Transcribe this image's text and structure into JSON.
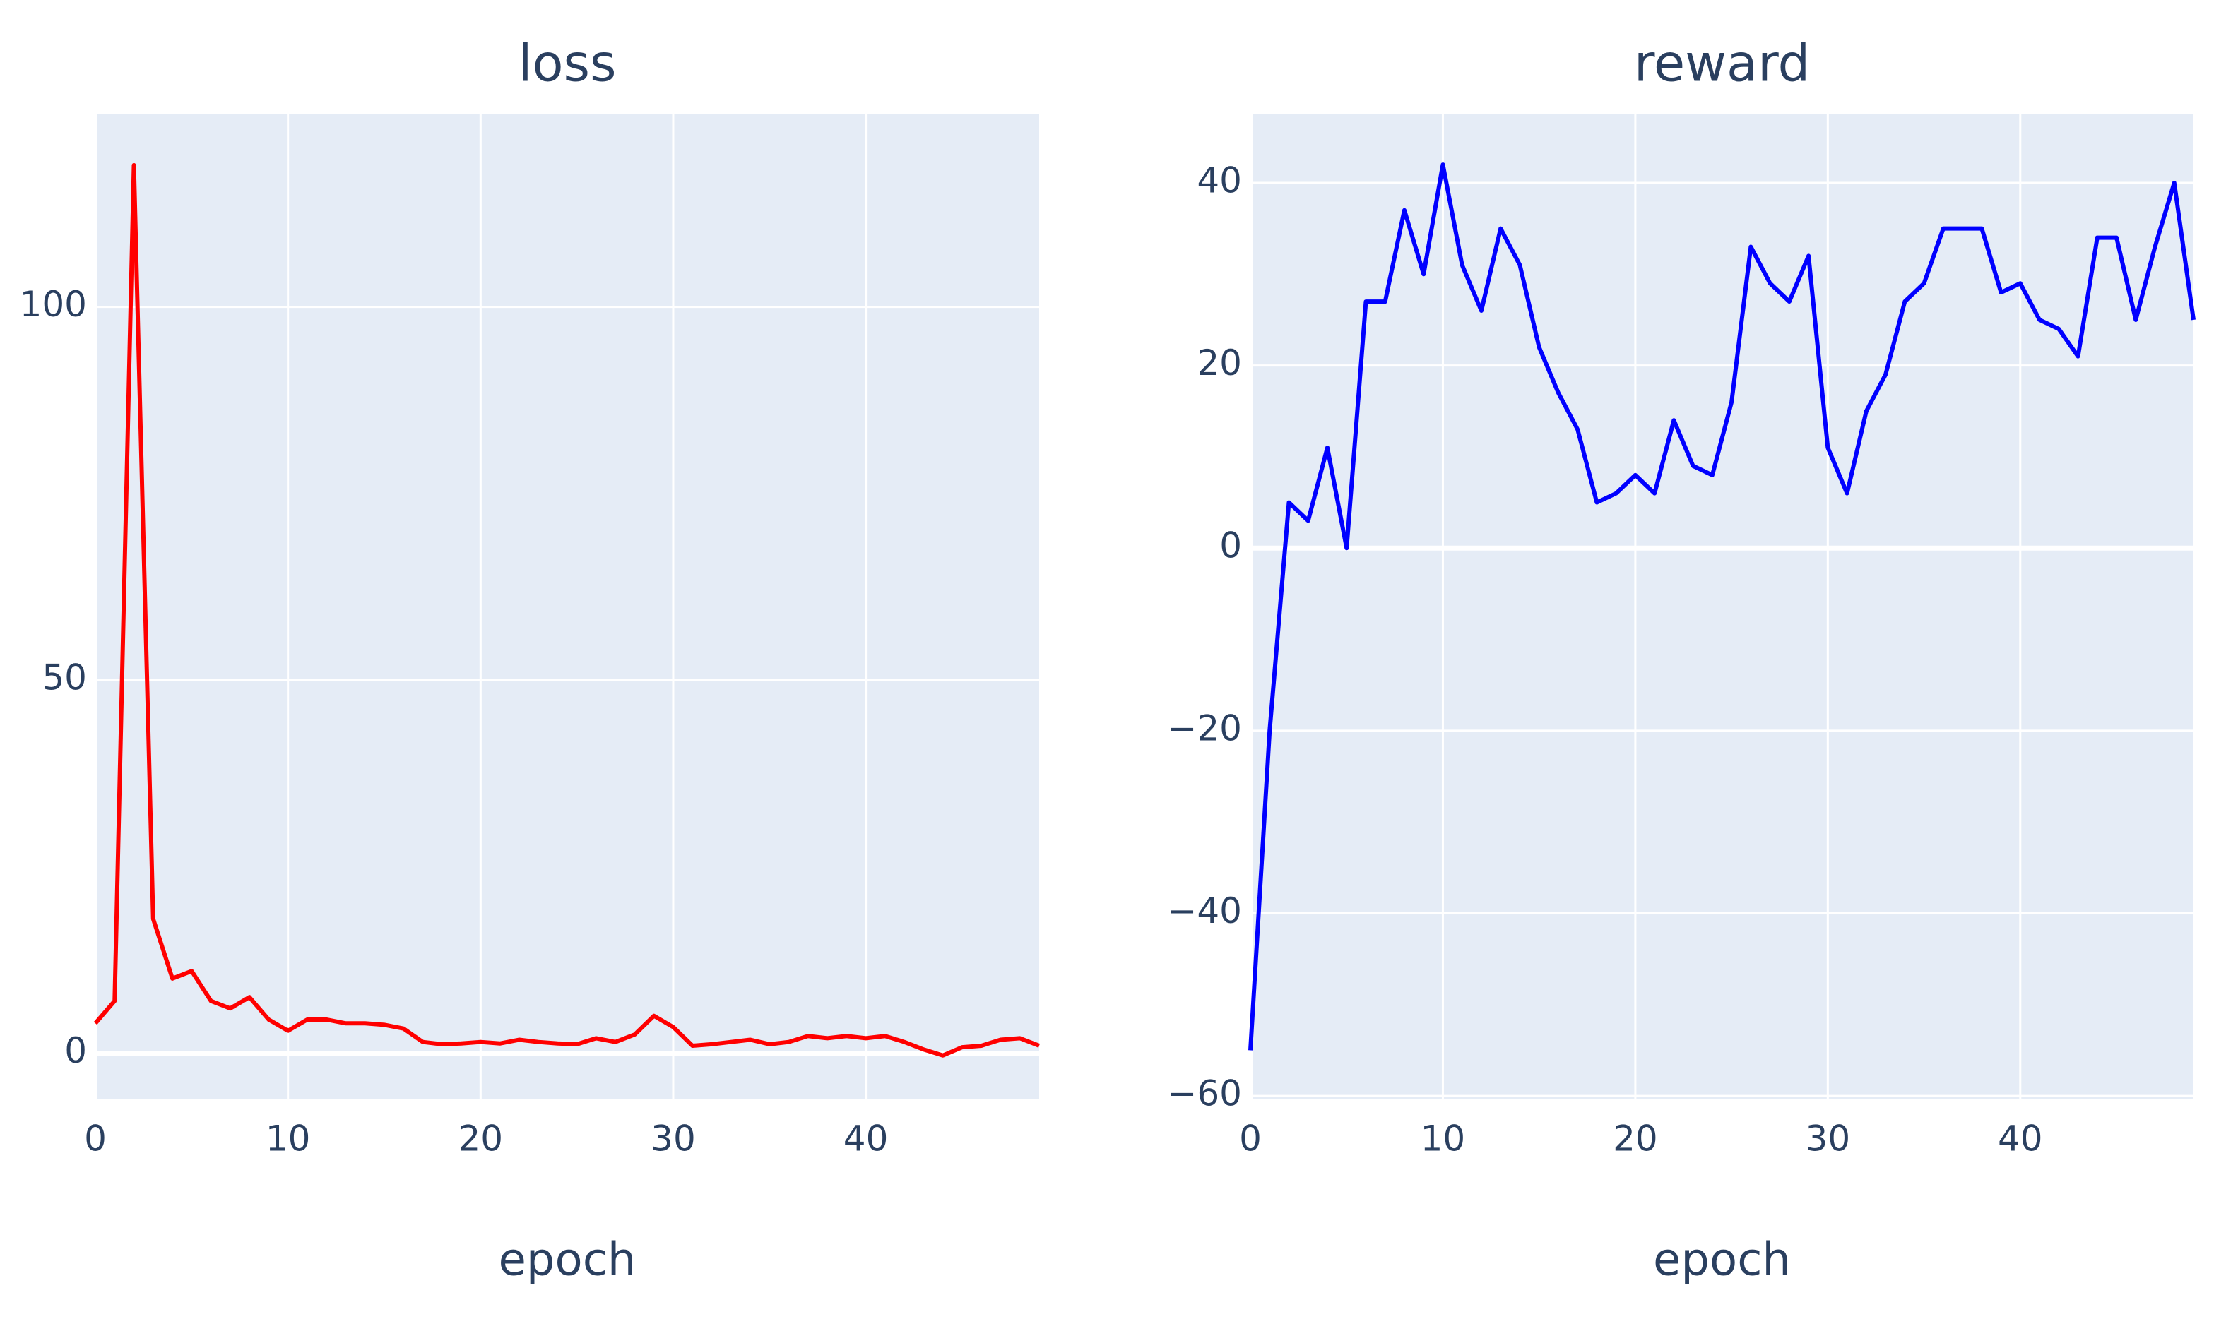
{
  "chart_data": [
    {
      "type": "line",
      "title": "loss",
      "x_label": "epoch",
      "color": "#ff0000",
      "x": [
        0,
        1,
        2,
        3,
        4,
        5,
        6,
        7,
        8,
        9,
        10,
        11,
        12,
        13,
        14,
        15,
        16,
        17,
        18,
        19,
        20,
        21,
        22,
        23,
        24,
        25,
        26,
        27,
        28,
        29,
        30,
        31,
        32,
        33,
        34,
        35,
        36,
        37,
        38,
        39,
        40,
        41,
        42,
        43,
        44,
        45,
        46,
        47,
        48,
        49
      ],
      "values": [
        4,
        7,
        119,
        18,
        10,
        11,
        7,
        6,
        7.5,
        4.5,
        3,
        4.5,
        4.5,
        4,
        4,
        3.8,
        3.3,
        1.5,
        1.2,
        1.3,
        1.5,
        1.3,
        1.8,
        1.5,
        1.3,
        1.2,
        2,
        1.5,
        2.5,
        5,
        3.5,
        1,
        1.2,
        1.5,
        1.8,
        1.2,
        1.5,
        2.3,
        2,
        2.3,
        2,
        2.3,
        1.5,
        0.5,
        -0.3,
        0.8,
        1,
        1.8,
        2,
        1
      ],
      "xlim": [
        0,
        49
      ],
      "xticks": [
        0,
        10,
        20,
        30,
        40
      ],
      "ylim": [
        -6.1,
        125.8
      ],
      "yticks": [
        0,
        50,
        100
      ],
      "grid": true
    },
    {
      "type": "line",
      "title": "reward",
      "x_label": "epoch",
      "color": "#0000ff",
      "x": [
        0,
        1,
        2,
        3,
        4,
        5,
        6,
        7,
        8,
        9,
        10,
        11,
        12,
        13,
        14,
        15,
        16,
        17,
        18,
        19,
        20,
        21,
        22,
        23,
        24,
        25,
        26,
        27,
        28,
        29,
        30,
        31,
        32,
        33,
        34,
        35,
        36,
        37,
        38,
        39,
        40,
        41,
        42,
        43,
        44,
        45,
        46,
        47,
        48,
        49
      ],
      "values": [
        -55,
        -20,
        5,
        3,
        11,
        0,
        27,
        27,
        37,
        30,
        42,
        31,
        26,
        35,
        31,
        22,
        17,
        13,
        5,
        6,
        8,
        6,
        14,
        9,
        8,
        16,
        33,
        29,
        27,
        32,
        11,
        6,
        15,
        19,
        27,
        29,
        35,
        35,
        35,
        28,
        29,
        25,
        24,
        21,
        34,
        34,
        25,
        33,
        40,
        25
      ],
      "xlim": [
        0,
        49
      ],
      "xticks": [
        0,
        10,
        20,
        30,
        40
      ],
      "ylim": [
        -60.3,
        47.5
      ],
      "yticks": [
        {
          "value": -60,
          "label": "−60"
        },
        {
          "value": -40,
          "label": "−40"
        },
        {
          "value": -20,
          "label": "−20"
        },
        0,
        20,
        40
      ],
      "grid": true
    }
  ]
}
